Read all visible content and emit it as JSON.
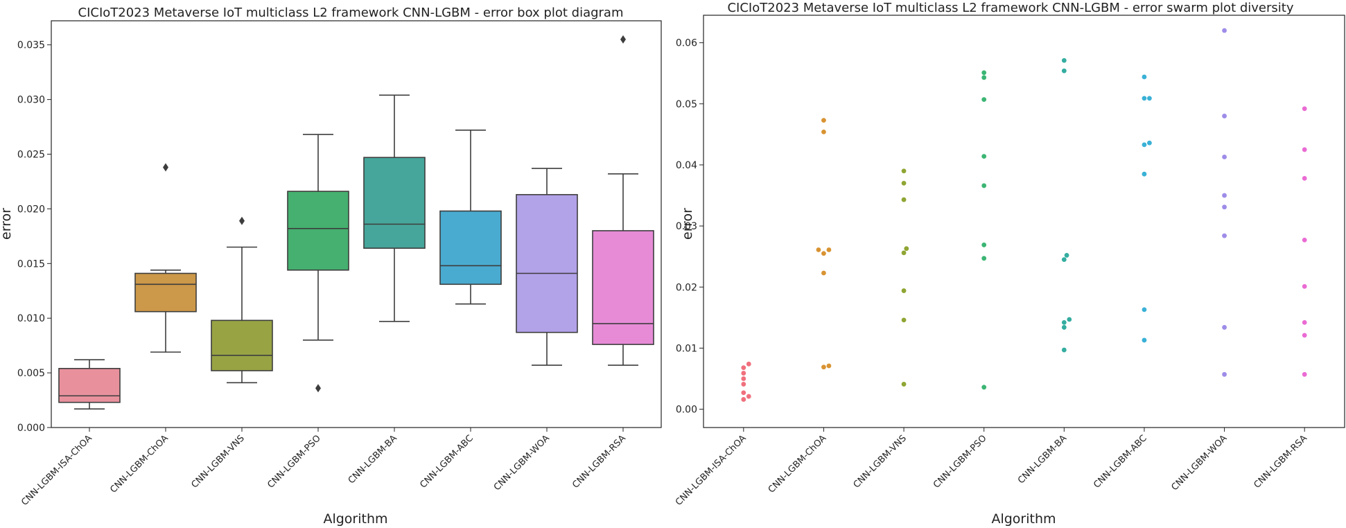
{
  "chart_data": [
    {
      "type": "box",
      "title": "CICIoT2023 Metaverse IoT multiclass L2 framework CNN-LGBM - error box plot diagram",
      "xlabel": "Algorithm",
      "ylabel": "error",
      "ylim": [
        0,
        0.0372
      ],
      "yticks": [
        0.0,
        0.005,
        0.01,
        0.015,
        0.02,
        0.025,
        0.03,
        0.035
      ],
      "ytick_labels": [
        "0.000",
        "0.005",
        "0.010",
        "0.015",
        "0.020",
        "0.025",
        "0.030",
        "0.035"
      ],
      "categories": [
        "CNN-LGBM-ISA-ChOA",
        "CNN-LGBM-ChOA",
        "CNN-LGBM-VNS",
        "CNN-LGBM-PSO",
        "CNN-LGBM-BA",
        "CNN-LGBM-ABC",
        "CNN-LGBM-WOA",
        "CNN-LGBM-RSA"
      ],
      "colors": [
        "#e8919d",
        "#cc9849",
        "#98a444",
        "#45b06f",
        "#47a69b",
        "#4aabd0",
        "#b2a2e8",
        "#e78bd7"
      ],
      "boxes": [
        {
          "whisker_low": 0.0017,
          "q1": 0.0023,
          "median": 0.0029,
          "q3": 0.0054,
          "whisker_high": 0.0062,
          "outliers": []
        },
        {
          "whisker_low": 0.0069,
          "q1": 0.0106,
          "median": 0.0131,
          "q3": 0.0141,
          "whisker_high": 0.0144,
          "outliers": [
            0.0238
          ]
        },
        {
          "whisker_low": 0.0041,
          "q1": 0.0052,
          "median": 0.0066,
          "q3": 0.0098,
          "whisker_high": 0.0165,
          "outliers": [
            0.0189
          ]
        },
        {
          "whisker_low": 0.008,
          "q1": 0.0144,
          "median": 0.0182,
          "q3": 0.0216,
          "whisker_high": 0.0268,
          "outliers": [
            0.0036
          ]
        },
        {
          "whisker_low": 0.0097,
          "q1": 0.0164,
          "median": 0.0186,
          "q3": 0.0247,
          "whisker_high": 0.0304,
          "outliers": []
        },
        {
          "whisker_low": 0.0113,
          "q1": 0.0131,
          "median": 0.0148,
          "q3": 0.0198,
          "whisker_high": 0.0272,
          "outliers": []
        },
        {
          "whisker_low": 0.0057,
          "q1": 0.0087,
          "median": 0.0141,
          "q3": 0.0213,
          "whisker_high": 0.0237,
          "outliers": []
        },
        {
          "whisker_low": 0.0057,
          "q1": 0.0076,
          "median": 0.0095,
          "q3": 0.018,
          "whisker_high": 0.0232,
          "outliers": [
            0.0355
          ]
        }
      ]
    },
    {
      "type": "scatter",
      "title": "CICIoT2023 Metaverse IoT multiclass L2 framework CNN-LGBM -  error swarm plot diversity",
      "xlabel": "Algorithm",
      "ylabel": "error",
      "ylim": [
        -0.003,
        0.0645
      ],
      "yticks": [
        0.0,
        0.01,
        0.02,
        0.03,
        0.04,
        0.05,
        0.06
      ],
      "ytick_labels": [
        "0.00",
        "0.01",
        "0.02",
        "0.03",
        "0.04",
        "0.05",
        "0.06"
      ],
      "categories": [
        "CNN-LGBM-ISA-ChOA",
        "CNN-LGBM-ChOA",
        "CNN-LGBM-VNS",
        "CNN-LGBM-PSO",
        "CNN-LGBM-BA",
        "CNN-LGBM-ABC",
        "CNN-LGBM-WOA",
        "CNN-LGBM-RSA"
      ],
      "colors": [
        "#f0707d",
        "#d89332",
        "#8fa533",
        "#3bb573",
        "#34ada0",
        "#3ab1d6",
        "#9e8ce8",
        "#ea6bd3"
      ],
      "series": [
        {
          "name": "CNN-LGBM-ISA-ChOA",
          "values": [
            0.0074,
            0.0068,
            0.0059,
            0.005,
            0.0041,
            0.0027,
            0.0021,
            0.0016
          ]
        },
        {
          "name": "CNN-LGBM-ChOA",
          "values": [
            0.0473,
            0.0454,
            0.0261,
            0.0261,
            0.0255,
            0.0223,
            0.0071,
            0.0069
          ]
        },
        {
          "name": "CNN-LGBM-VNS",
          "values": [
            0.039,
            0.037,
            0.0343,
            0.0263,
            0.0256,
            0.0194,
            0.0146,
            0.0041
          ]
        },
        {
          "name": "CNN-LGBM-PSO",
          "values": [
            0.0551,
            0.0543,
            0.0507,
            0.0414,
            0.0366,
            0.0269,
            0.0247,
            0.0036
          ]
        },
        {
          "name": "CNN-LGBM-BA",
          "values": [
            0.0571,
            0.0554,
            0.0252,
            0.0245,
            0.0147,
            0.0142,
            0.0134,
            0.0097
          ]
        },
        {
          "name": "CNN-LGBM-ABC",
          "values": [
            0.0544,
            0.0509,
            0.0509,
            0.0436,
            0.0433,
            0.0385,
            0.0163,
            0.0113
          ]
        },
        {
          "name": "CNN-LGBM-WOA",
          "values": [
            0.062,
            0.048,
            0.0413,
            0.035,
            0.0331,
            0.0284,
            0.0134,
            0.0057
          ]
        },
        {
          "name": "CNN-LGBM-RSA",
          "values": [
            0.0492,
            0.0425,
            0.0378,
            0.0277,
            0.0201,
            0.0142,
            0.0121,
            0.0057
          ]
        }
      ]
    }
  ]
}
